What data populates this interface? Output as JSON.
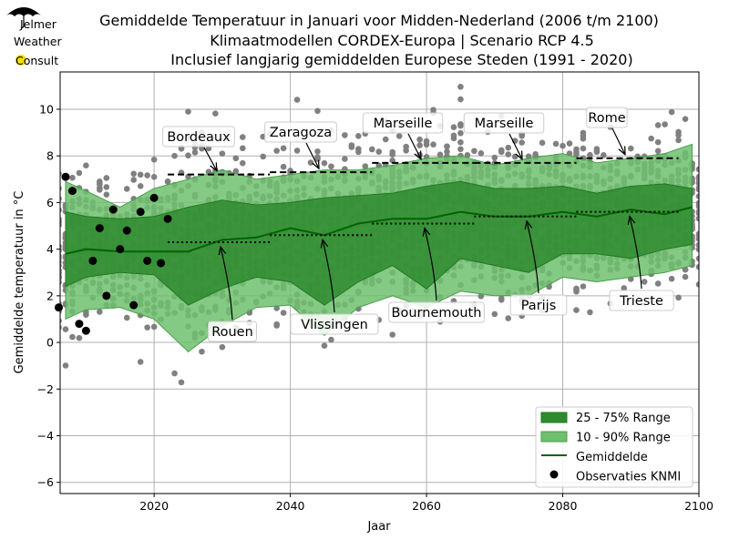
{
  "logo": {
    "text_lines": [
      "Jelmer",
      "Weather",
      "Consult"
    ]
  },
  "chart_data": {
    "type": "area",
    "title": [
      "Gemiddelde Temperatuur in Januari voor Midden-Nederland (2006 t/m 2100)",
      "Klimaatmodellen CORDEX-Europa | Scenario RCP 4.5",
      "Inclusief langjarig gemiddelden Europese Steden (1991 - 2020)"
    ],
    "xlabel": "Jaar",
    "ylabel": "Gemiddelde temperatuur in °C",
    "xlim": [
      2006.2,
      2100
    ],
    "ylim": [
      -6.48,
      11.6
    ],
    "xticks": [
      2020,
      2040,
      2060,
      2080,
      2100
    ],
    "yticks": [
      -6,
      -4,
      -2,
      0,
      2,
      4,
      6,
      8,
      10
    ],
    "grid": true,
    "legend_position": "lower-right",
    "colors": {
      "band_25_75": "#2e8b2e",
      "band_10_90": "#6fbf6f",
      "mean": "#006400",
      "observations": "#000000",
      "models": "#808080"
    },
    "bands": {
      "x": [
        2007,
        2010,
        2015,
        2020,
        2025,
        2030,
        2035,
        2040,
        2045,
        2050,
        2055,
        2060,
        2065,
        2070,
        2075,
        2080,
        2085,
        2090,
        2095,
        2099
      ],
      "mean": [
        3.8,
        4.0,
        3.9,
        3.9,
        3.9,
        4.4,
        4.5,
        4.9,
        4.6,
        5.1,
        5.3,
        5.3,
        5.6,
        5.4,
        5.4,
        5.6,
        5.4,
        5.7,
        5.5,
        5.8
      ],
      "p25": [
        2.4,
        2.8,
        3.0,
        2.9,
        1.6,
        2.3,
        2.8,
        2.6,
        1.6,
        2.6,
        3.3,
        2.3,
        3.6,
        3.3,
        3.0,
        3.8,
        3.8,
        3.6,
        4.0,
        4.2
      ],
      "p75": [
        5.6,
        5.4,
        5.3,
        5.4,
        5.8,
        6.1,
        5.9,
        6.0,
        6.2,
        6.3,
        6.4,
        6.7,
        6.9,
        6.6,
        6.6,
        6.7,
        6.4,
        6.7,
        6.8,
        6.6
      ],
      "p10": [
        1.0,
        1.4,
        1.5,
        1.0,
        -0.4,
        0.7,
        1.5,
        1.6,
        0.3,
        1.5,
        2.0,
        1.5,
        2.2,
        2.0,
        2.0,
        2.8,
        2.6,
        2.8,
        3.0,
        3.3
      ],
      "p90": [
        6.9,
        6.5,
        5.8,
        6.6,
        7.0,
        7.4,
        7.0,
        7.2,
        7.4,
        7.4,
        7.6,
        7.9,
        8.0,
        7.6,
        7.9,
        8.1,
        7.7,
        7.9,
        8.1,
        8.5
      ]
    },
    "observations": {
      "x": [
        2006,
        2007,
        2008,
        2009,
        2010,
        2011,
        2012,
        2013,
        2014,
        2015,
        2016,
        2017,
        2018,
        2019,
        2020,
        2021,
        2022
      ],
      "y": [
        1.5,
        7.1,
        6.5,
        0.8,
        0.5,
        3.5,
        4.9,
        2.0,
        5.7,
        4.0,
        4.8,
        1.6,
        5.6,
        3.5,
        6.2,
        3.4,
        5.3
      ]
    },
    "cities_upper": [
      {
        "name": "Bordeaux",
        "value": 7.2,
        "x": [
          2022,
          2037
        ]
      },
      {
        "name": "Zaragoza",
        "value": 7.3,
        "x": [
          2037,
          2052
        ]
      },
      {
        "name": "Marseille",
        "value": 7.7,
        "x": [
          2052,
          2067
        ]
      },
      {
        "name": "Marseille",
        "value": 7.7,
        "x": [
          2067,
          2082
        ]
      },
      {
        "name": "Rome",
        "value": 7.9,
        "x": [
          2082,
          2097
        ]
      }
    ],
    "cities_lower": [
      {
        "name": "Rouen",
        "value": 4.3,
        "x": [
          2022,
          2037
        ]
      },
      {
        "name": "Vlissingen",
        "value": 4.6,
        "x": [
          2037,
          2052
        ]
      },
      {
        "name": "Bournemouth",
        "value": 5.1,
        "x": [
          2052,
          2067
        ]
      },
      {
        "name": "Parijs",
        "value": 5.4,
        "x": [
          2067,
          2082
        ]
      },
      {
        "name": "Trieste",
        "value": 5.6,
        "x": [
          2082,
          2097
        ]
      }
    ],
    "legend": [
      "25 - 75% Range",
      "10 - 90% Range",
      "Gemiddelde",
      "Observaties KNMI"
    ]
  }
}
